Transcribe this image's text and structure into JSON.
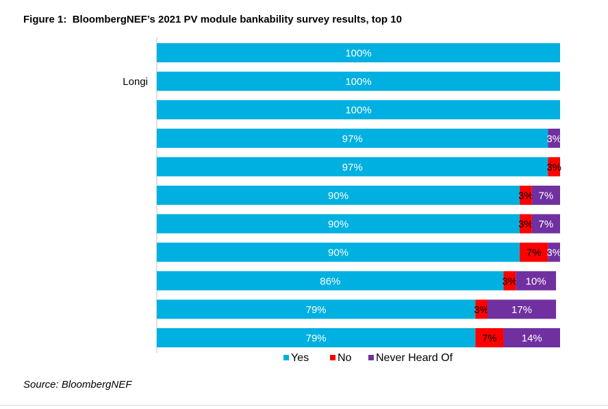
{
  "figure": {
    "label": "Figure 1:",
    "title": "BloombergNEF’s 2021 PV module bankability survey results, top 10",
    "source": "Source: BloombergNEF"
  },
  "chart_data": {
    "type": "bar",
    "orientation": "horizontal",
    "stacked": true,
    "categories": [
      "",
      "Longi",
      "",
      "",
      "",
      "",
      "",
      "",
      "",
      "",
      ""
    ],
    "series": [
      {
        "name": "Yes",
        "color": "#00b0e0",
        "values": [
          100,
          100,
          100,
          97,
          97,
          90,
          90,
          90,
          86,
          79,
          79
        ]
      },
      {
        "name": "No",
        "color": "#ff0000",
        "values": [
          0,
          0,
          0,
          0,
          3,
          3,
          3,
          7,
          3,
          3,
          7
        ]
      },
      {
        "name": "Never Heard Of",
        "color": "#7030a0",
        "values": [
          0,
          0,
          0,
          3,
          0,
          7,
          7,
          3,
          10,
          17,
          14
        ]
      }
    ],
    "xlim": [
      0,
      100
    ],
    "value_suffix": "%",
    "grid": false,
    "legend": "bottom"
  }
}
